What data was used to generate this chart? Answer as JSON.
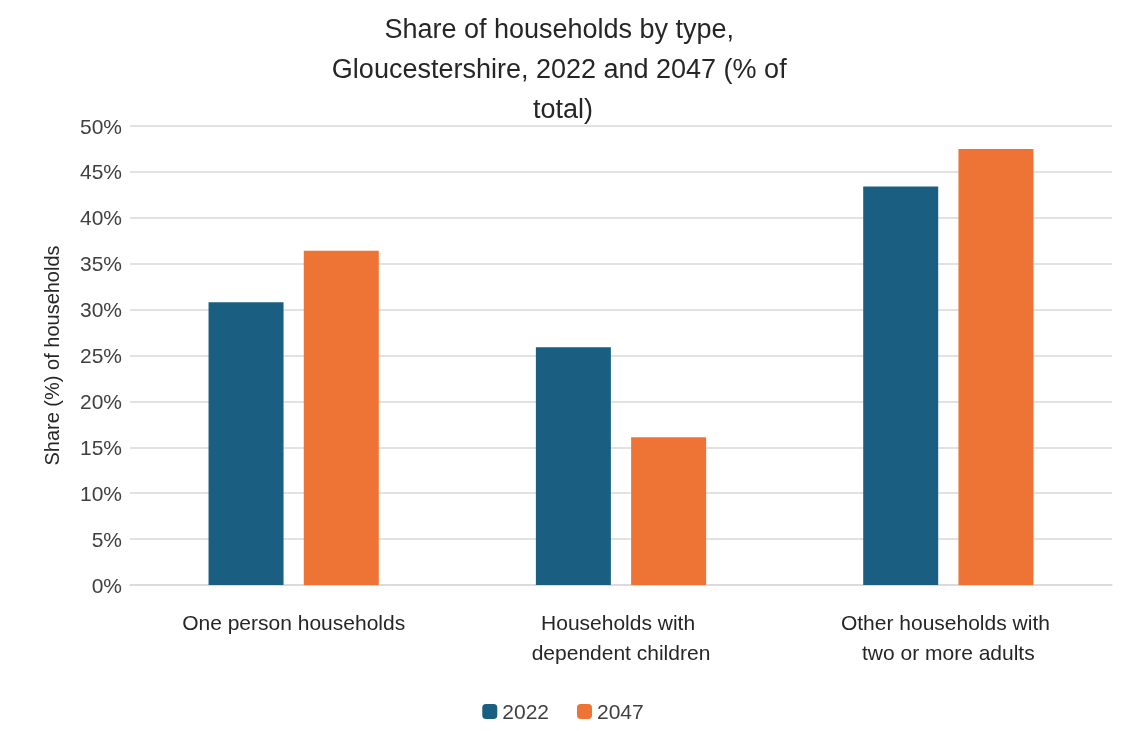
{
  "chart_data": {
    "type": "bar",
    "title": "Share of households by type, Gloucestershire, 2022 and 2047 (% of total)",
    "ylabel": "Share (%) of households",
    "categories": [
      "One person households",
      "Households with dependent children",
      "Other households with two or more adults"
    ],
    "series": [
      {
        "name": "2022",
        "color": "#1a5e82",
        "values": [
          30.8,
          25.9,
          43.4
        ]
      },
      {
        "name": "2047",
        "color": "#ed7434",
        "values": [
          36.4,
          16.1,
          47.5
        ]
      }
    ],
    "ylim": [
      0,
      50
    ],
    "yticks": [
      {
        "value": 0,
        "label": "0%"
      },
      {
        "value": 5,
        "label": "5%"
      },
      {
        "value": 10,
        "label": "10%"
      },
      {
        "value": 15,
        "label": "15%"
      },
      {
        "value": 20,
        "label": "20%"
      },
      {
        "value": 25,
        "label": "25%"
      },
      {
        "value": 30,
        "label": "30%"
      },
      {
        "value": 35,
        "label": "35%"
      },
      {
        "value": 40,
        "label": "40%"
      },
      {
        "value": 45,
        "label": "45%"
      },
      {
        "value": 50,
        "label": "50%"
      }
    ],
    "grid": "y",
    "legend": "bottom"
  }
}
